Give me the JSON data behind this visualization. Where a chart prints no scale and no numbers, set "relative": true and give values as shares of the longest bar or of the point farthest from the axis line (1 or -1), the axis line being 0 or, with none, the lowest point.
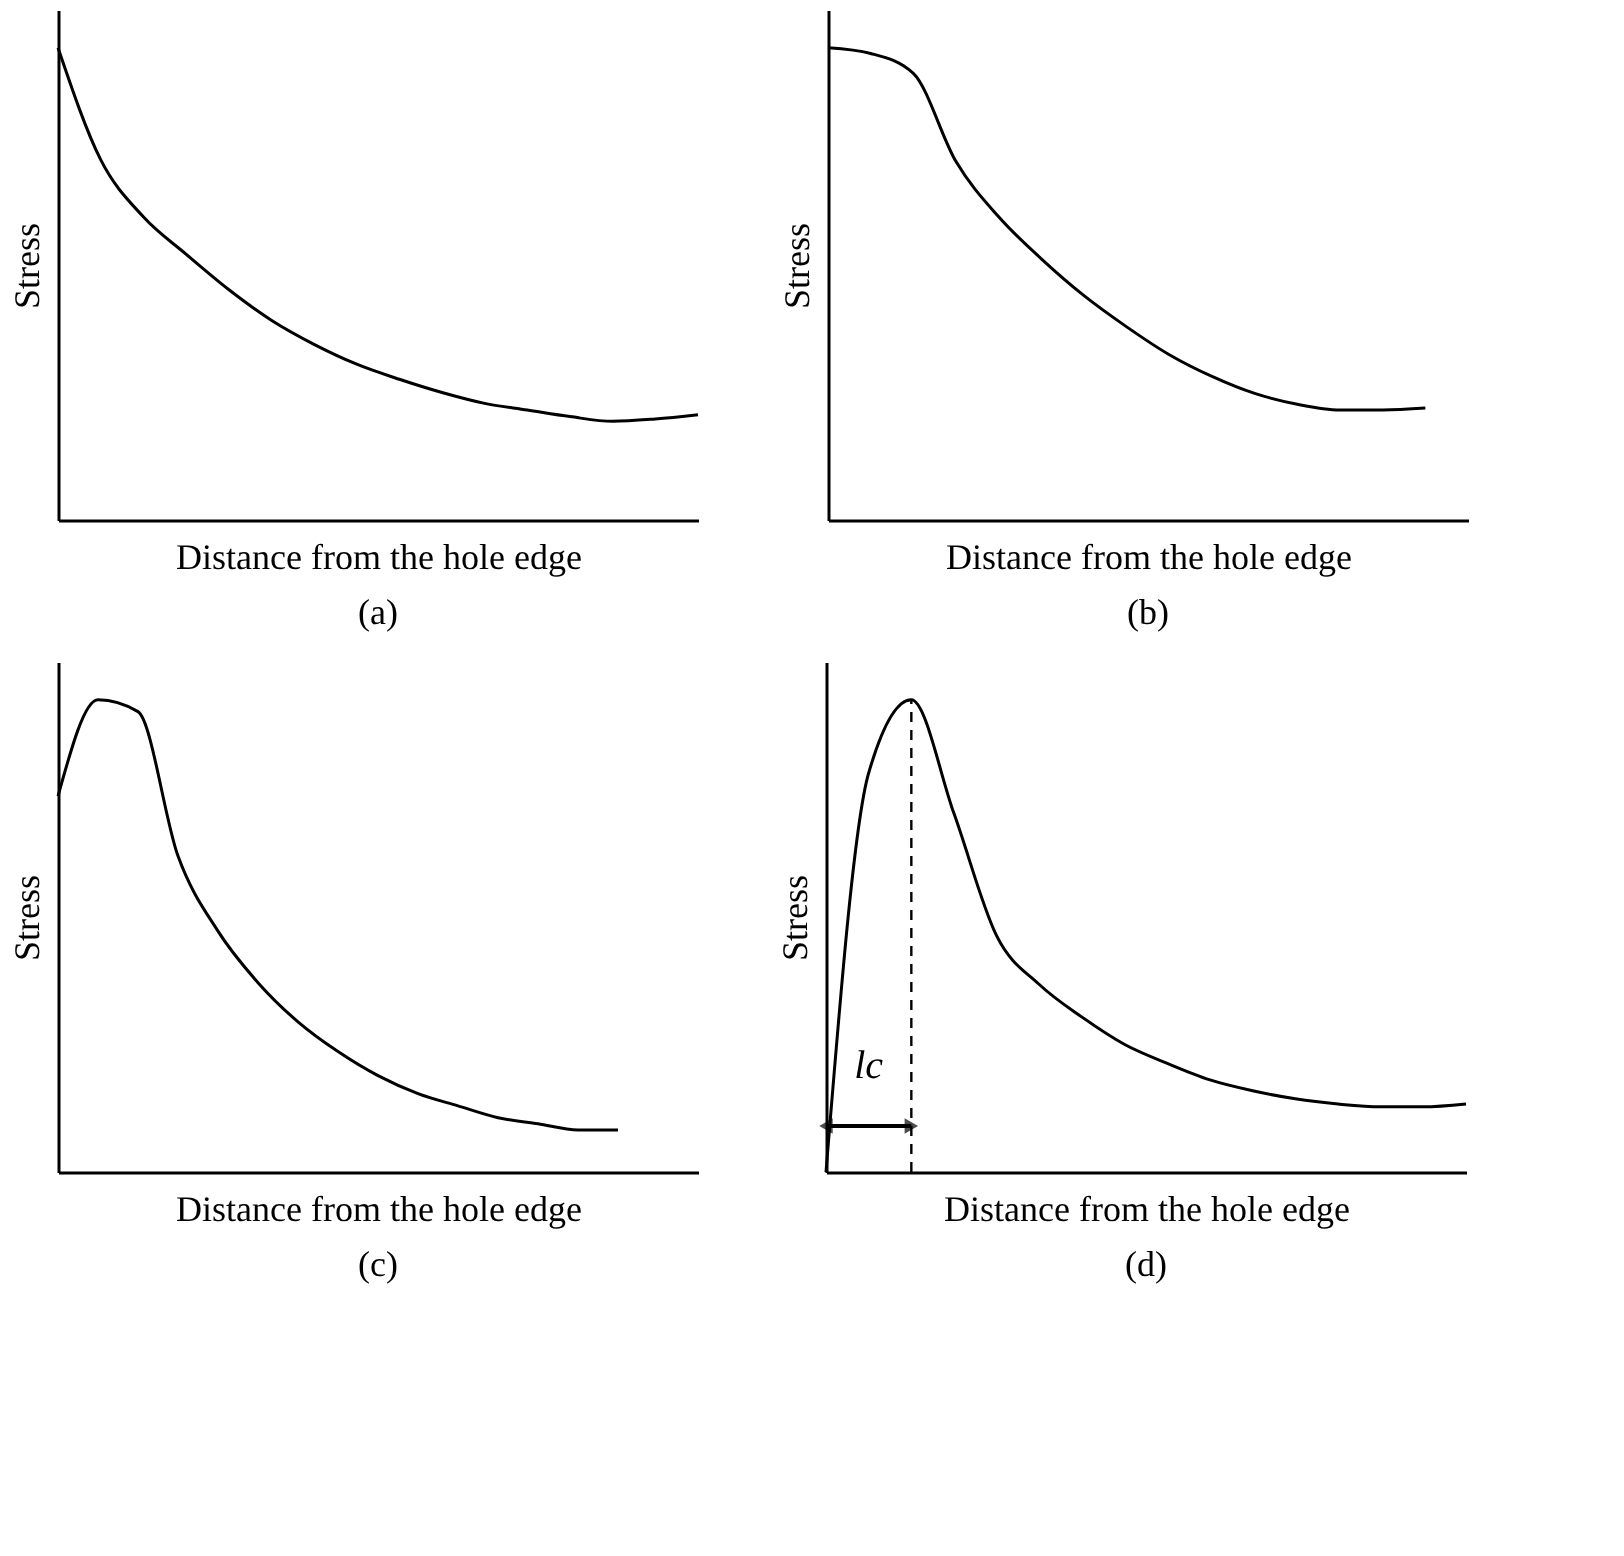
{
  "chart_data": [
    {
      "type": "line",
      "title": "(a)",
      "xlabel": "Distance from the hole edge",
      "ylabel": "Stress",
      "relative": true,
      "grid": false,
      "tick_labels": false,
      "categories": [
        null,
        null,
        null,
        null,
        null,
        null,
        null,
        null,
        null,
        null,
        null,
        null,
        null,
        null,
        null,
        null
      ],
      "series": [
        {
          "color": "#000000",
          "values": [
            1,
            0.763,
            0.642,
            0.563,
            0.488,
            0.423,
            0.372,
            0.33,
            0.298,
            0.27,
            0.247,
            0.233,
            0.219,
            0.209,
            0.214,
            0.223
          ]
        }
      ]
    },
    {
      "type": "line",
      "title": "(b)",
      "xlabel": "Distance from the hole edge",
      "ylabel": "Stress",
      "relative": true,
      "grid": false,
      "tick_labels": false,
      "categories": [
        null,
        null,
        null,
        null,
        null,
        null,
        null,
        null,
        null,
        null,
        null,
        null,
        null,
        null,
        null,
        null
      ],
      "series": [
        {
          "color": "#000000",
          "values": [
            1,
            0.988,
            0.946,
            0.759,
            0.642,
            0.553,
            0.475,
            0.409,
            0.35,
            0.304,
            0.268,
            0.245,
            0.233,
            0.233,
            0.237,
            null
          ]
        }
      ]
    },
    {
      "type": "line",
      "title": "(c)",
      "xlabel": "Distance from the hole edge",
      "ylabel": "Stress",
      "relative": true,
      "grid": false,
      "tick_labels": false,
      "categories": [
        null,
        null,
        null,
        null,
        null,
        null,
        null,
        null,
        null,
        null,
        null,
        null,
        null,
        null,
        null,
        null,
        null
      ],
      "series": [
        {
          "color": "#000000",
          "values": [
            0.796,
            1,
            0.975,
            0.669,
            0.51,
            0.401,
            0.318,
            0.255,
            0.204,
            0.166,
            0.14,
            0.115,
            0.102,
            0.089,
            0.089,
            null,
            null
          ]
        }
      ]
    },
    {
      "type": "line",
      "title": "(d)",
      "xlabel": "Distance from the hole edge",
      "ylabel": "Stress",
      "relative": true,
      "grid": false,
      "tick_labels": false,
      "categories": [
        null,
        null,
        null,
        null,
        null,
        null,
        null,
        null,
        null,
        null,
        null,
        null,
        null,
        null,
        null,
        null
      ],
      "series": [
        {
          "color": "#000000",
          "values": [
            0,
            0.845,
            1,
            0.759,
            0.5,
            0.397,
            0.328,
            0.27,
            0.23,
            0.195,
            0.172,
            0.155,
            0.144,
            0.138,
            0.138,
            0.144
          ]
        }
      ],
      "annotations": [
        "lc"
      ]
    }
  ]
}
